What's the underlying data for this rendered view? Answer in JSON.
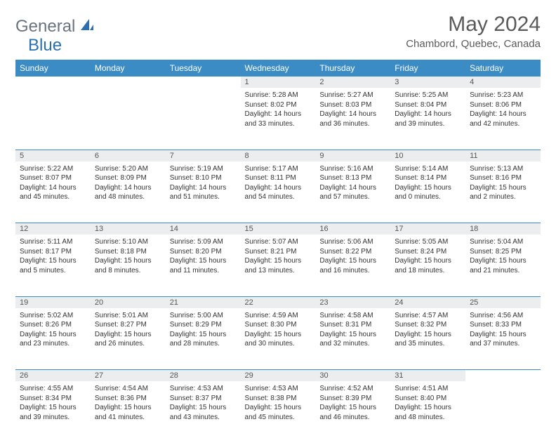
{
  "logo": {
    "part1": "General",
    "part2": "Blue"
  },
  "title": "May 2024",
  "location": "Chambord, Quebec, Canada",
  "colors": {
    "header_bg": "#3b8bc4",
    "header_text": "#ffffff",
    "daynum_bg": "#ebedef",
    "border": "#3b8bc4",
    "logo_gray": "#6b7280",
    "logo_blue": "#2b6fb0"
  },
  "day_headers": [
    "Sunday",
    "Monday",
    "Tuesday",
    "Wednesday",
    "Thursday",
    "Friday",
    "Saturday"
  ],
  "weeks": [
    [
      null,
      null,
      null,
      {
        "n": "1",
        "sr": "5:28 AM",
        "ss": "8:02 PM",
        "dl": "14 hours and 33 minutes."
      },
      {
        "n": "2",
        "sr": "5:27 AM",
        "ss": "8:03 PM",
        "dl": "14 hours and 36 minutes."
      },
      {
        "n": "3",
        "sr": "5:25 AM",
        "ss": "8:04 PM",
        "dl": "14 hours and 39 minutes."
      },
      {
        "n": "4",
        "sr": "5:23 AM",
        "ss": "8:06 PM",
        "dl": "14 hours and 42 minutes."
      }
    ],
    [
      {
        "n": "5",
        "sr": "5:22 AM",
        "ss": "8:07 PM",
        "dl": "14 hours and 45 minutes."
      },
      {
        "n": "6",
        "sr": "5:20 AM",
        "ss": "8:09 PM",
        "dl": "14 hours and 48 minutes."
      },
      {
        "n": "7",
        "sr": "5:19 AM",
        "ss": "8:10 PM",
        "dl": "14 hours and 51 minutes."
      },
      {
        "n": "8",
        "sr": "5:17 AM",
        "ss": "8:11 PM",
        "dl": "14 hours and 54 minutes."
      },
      {
        "n": "9",
        "sr": "5:16 AM",
        "ss": "8:13 PM",
        "dl": "14 hours and 57 minutes."
      },
      {
        "n": "10",
        "sr": "5:14 AM",
        "ss": "8:14 PM",
        "dl": "15 hours and 0 minutes."
      },
      {
        "n": "11",
        "sr": "5:13 AM",
        "ss": "8:16 PM",
        "dl": "15 hours and 2 minutes."
      }
    ],
    [
      {
        "n": "12",
        "sr": "5:11 AM",
        "ss": "8:17 PM",
        "dl": "15 hours and 5 minutes."
      },
      {
        "n": "13",
        "sr": "5:10 AM",
        "ss": "8:18 PM",
        "dl": "15 hours and 8 minutes."
      },
      {
        "n": "14",
        "sr": "5:09 AM",
        "ss": "8:20 PM",
        "dl": "15 hours and 11 minutes."
      },
      {
        "n": "15",
        "sr": "5:07 AM",
        "ss": "8:21 PM",
        "dl": "15 hours and 13 minutes."
      },
      {
        "n": "16",
        "sr": "5:06 AM",
        "ss": "8:22 PM",
        "dl": "15 hours and 16 minutes."
      },
      {
        "n": "17",
        "sr": "5:05 AM",
        "ss": "8:24 PM",
        "dl": "15 hours and 18 minutes."
      },
      {
        "n": "18",
        "sr": "5:04 AM",
        "ss": "8:25 PM",
        "dl": "15 hours and 21 minutes."
      }
    ],
    [
      {
        "n": "19",
        "sr": "5:02 AM",
        "ss": "8:26 PM",
        "dl": "15 hours and 23 minutes."
      },
      {
        "n": "20",
        "sr": "5:01 AM",
        "ss": "8:27 PM",
        "dl": "15 hours and 26 minutes."
      },
      {
        "n": "21",
        "sr": "5:00 AM",
        "ss": "8:29 PM",
        "dl": "15 hours and 28 minutes."
      },
      {
        "n": "22",
        "sr": "4:59 AM",
        "ss": "8:30 PM",
        "dl": "15 hours and 30 minutes."
      },
      {
        "n": "23",
        "sr": "4:58 AM",
        "ss": "8:31 PM",
        "dl": "15 hours and 32 minutes."
      },
      {
        "n": "24",
        "sr": "4:57 AM",
        "ss": "8:32 PM",
        "dl": "15 hours and 35 minutes."
      },
      {
        "n": "25",
        "sr": "4:56 AM",
        "ss": "8:33 PM",
        "dl": "15 hours and 37 minutes."
      }
    ],
    [
      {
        "n": "26",
        "sr": "4:55 AM",
        "ss": "8:34 PM",
        "dl": "15 hours and 39 minutes."
      },
      {
        "n": "27",
        "sr": "4:54 AM",
        "ss": "8:36 PM",
        "dl": "15 hours and 41 minutes."
      },
      {
        "n": "28",
        "sr": "4:53 AM",
        "ss": "8:37 PM",
        "dl": "15 hours and 43 minutes."
      },
      {
        "n": "29",
        "sr": "4:53 AM",
        "ss": "8:38 PM",
        "dl": "15 hours and 45 minutes."
      },
      {
        "n": "30",
        "sr": "4:52 AM",
        "ss": "8:39 PM",
        "dl": "15 hours and 46 minutes."
      },
      {
        "n": "31",
        "sr": "4:51 AM",
        "ss": "8:40 PM",
        "dl": "15 hours and 48 minutes."
      },
      null
    ]
  ],
  "labels": {
    "sunrise": "Sunrise: ",
    "sunset": "Sunset: ",
    "daylight": "Daylight: "
  }
}
